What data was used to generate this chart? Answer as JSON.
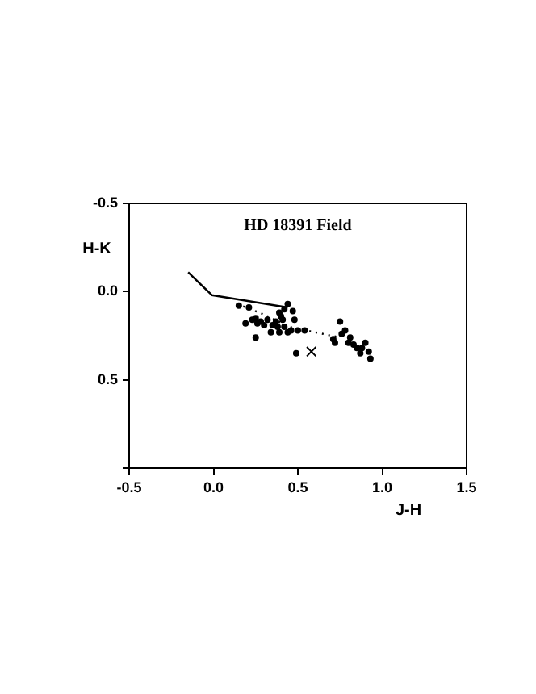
{
  "chart_data": {
    "type": "scatter",
    "title": "HD 18391 Field",
    "xlabel": "J-H",
    "ylabel": "H-K",
    "xlim": [
      -0.5,
      1.5
    ],
    "xticks": [
      -0.5,
      {
        "value": 0,
        "label": "0.0"
      },
      0.5,
      {
        "value": 1,
        "label": "1.0"
      },
      1.5
    ],
    "ylim": [
      1.0,
      -0.5
    ],
    "yticks": [
      -0.5,
      {
        "value": 0,
        "label": "0.0"
      },
      0.5,
      {
        "value": 1.0,
        "label": null
      }
    ],
    "grid": false,
    "legend": false,
    "series": [
      {
        "type": "line",
        "color": "#000000",
        "marker": "none",
        "line_style": "solid",
        "x": [
          -0.15,
          -0.01,
          0.44
        ],
        "values": [
          -0.11,
          0.02,
          0.09
        ]
      },
      {
        "type": "line",
        "color": "#000000",
        "marker": "none",
        "line_style": "dotted",
        "x": [
          0.14,
          0.3,
          0.45,
          0.6,
          0.75
        ],
        "values": [
          0.07,
          0.13,
          0.2,
          0.23,
          0.26
        ]
      },
      {
        "color": "#000000",
        "marker": "cross",
        "x": [
          0.58
        ],
        "values": [
          0.34
        ]
      },
      {
        "color": "#000000",
        "marker": "circle",
        "x": [
          0.15,
          0.21,
          0.19,
          0.23,
          0.25,
          0.26,
          0.28,
          0.3,
          0.25,
          0.32,
          0.35,
          0.37,
          0.38,
          0.34,
          0.39,
          0.41,
          0.39,
          0.4,
          0.42,
          0.44,
          0.46,
          0.42,
          0.44,
          0.47,
          0.48,
          0.5,
          0.54,
          0.49,
          0.71,
          0.72,
          0.75,
          0.76,
          0.78,
          0.8,
          0.81,
          0.83,
          0.85,
          0.87,
          0.88,
          0.9,
          0.92,
          0.93
        ],
        "values": [
          0.08,
          0.09,
          0.18,
          0.16,
          0.15,
          0.18,
          0.17,
          0.19,
          0.26,
          0.16,
          0.19,
          0.17,
          0.2,
          0.23,
          0.23,
          0.16,
          0.12,
          0.14,
          0.2,
          0.23,
          0.22,
          0.1,
          0.07,
          0.11,
          0.16,
          0.22,
          0.22,
          0.35,
          0.27,
          0.29,
          0.17,
          0.24,
          0.22,
          0.29,
          0.26,
          0.3,
          0.32,
          0.35,
          0.32,
          0.29,
          0.34,
          0.38
        ]
      }
    ]
  }
}
